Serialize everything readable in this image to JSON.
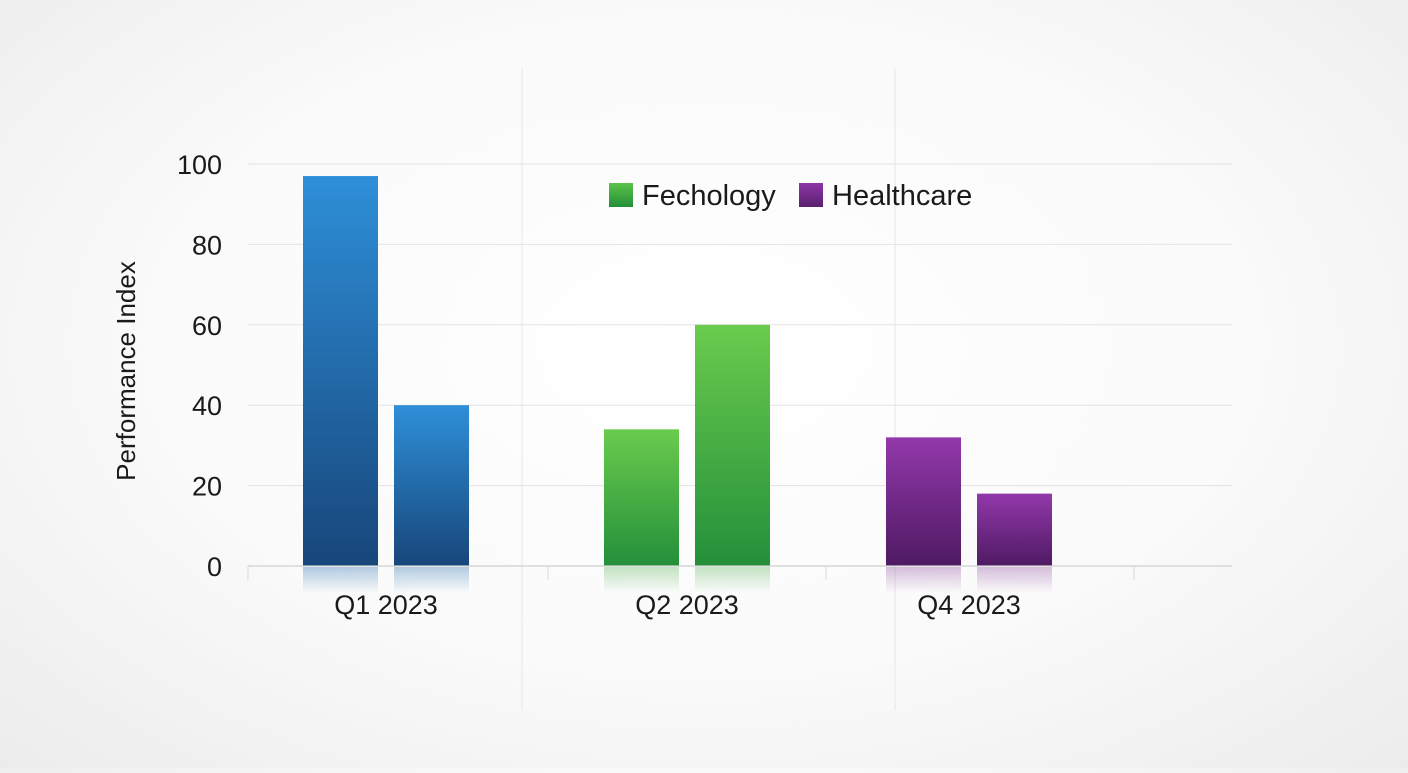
{
  "chart_data": {
    "type": "bar",
    "title": "",
    "xlabel": "",
    "ylabel": "Performance Index",
    "ylim": [
      0,
      100
    ],
    "yticks": [
      0,
      20,
      40,
      60,
      80,
      100
    ],
    "grid": true,
    "legend_position": "top-center",
    "legend": [
      {
        "label": "Fechology",
        "color": "#3aa53c"
      },
      {
        "label": "Healthcare",
        "color": "#7a2e8e"
      }
    ],
    "groups": [
      {
        "label": "Q1 2023",
        "values": [
          97,
          40
        ],
        "color": "#2a80c6"
      },
      {
        "label": "Q2 2023",
        "values": [
          34,
          60
        ],
        "color": "#4bbf43"
      },
      {
        "label": "Q4 2023",
        "values": [
          32,
          18
        ],
        "color": "#7d2f93"
      }
    ]
  }
}
